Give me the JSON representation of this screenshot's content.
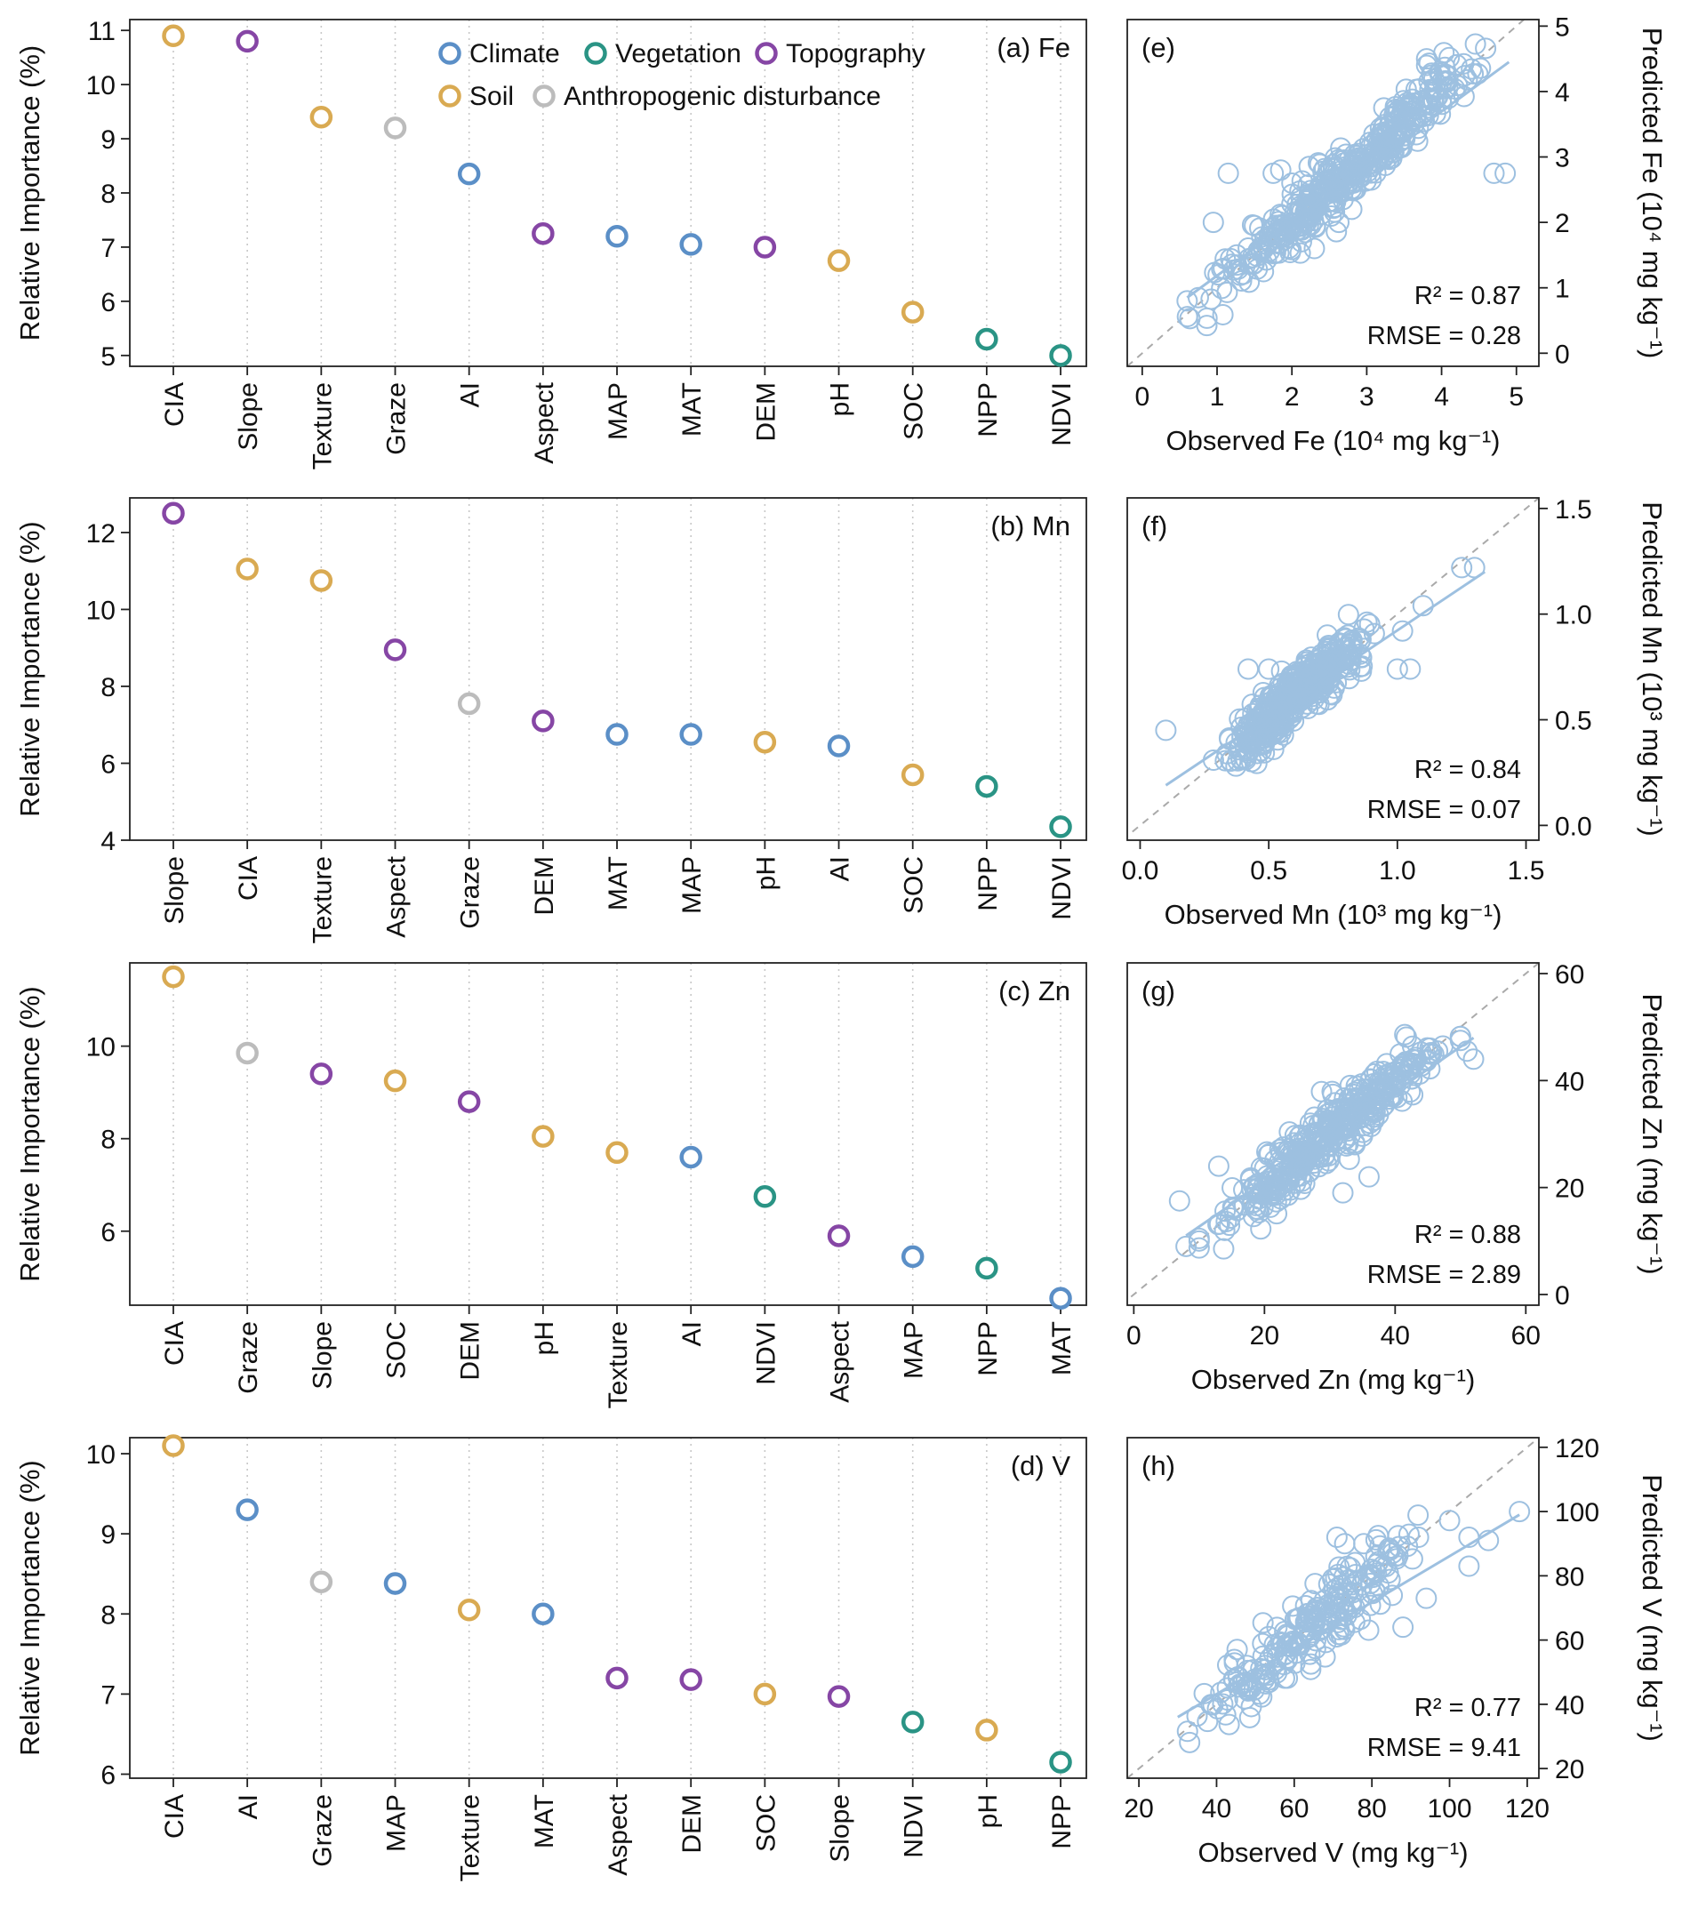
{
  "colors": {
    "Climate": "#5b8fc7",
    "Vegetation": "#2a9485",
    "Topography": "#8646a5",
    "Soil": "#d9aa52",
    "Anthropogenic disturbance": "#bcbcbc",
    "scatter": "#9dc0e0",
    "diagonal": "#aaaaaa"
  },
  "legend": {
    "row1": [
      "Climate",
      "Vegetation",
      "Topography"
    ],
    "row2": [
      "Soil",
      "Anthropogenic disturbance"
    ]
  },
  "chart_data": [
    {
      "type": "scatter",
      "panel": "(a) Fe",
      "ylabel": "Relative Importance (%)",
      "ylim": [
        4.8,
        11.2
      ],
      "yticks": [
        5,
        6,
        7,
        8,
        9,
        10,
        11
      ],
      "categories": [
        "CIA",
        "Slope",
        "Texture",
        "Graze",
        "AI",
        "Aspect",
        "MAP",
        "MAT",
        "DEM",
        "pH",
        "SOC",
        "NPP",
        "NDVI"
      ],
      "groups": [
        "Soil",
        "Topography",
        "Soil",
        "Anthropogenic disturbance",
        "Climate",
        "Topography",
        "Climate",
        "Climate",
        "Topography",
        "Soil",
        "Soil",
        "Vegetation",
        "Vegetation"
      ],
      "values": [
        10.9,
        10.8,
        9.4,
        9.2,
        8.35,
        7.25,
        7.2,
        7.05,
        7.0,
        6.75,
        5.8,
        5.3,
        5.0
      ]
    },
    {
      "type": "scatter",
      "panel": "(b) Mn",
      "ylabel": "Relative Importance (%)",
      "ylim": [
        4.0,
        12.9
      ],
      "yticks": [
        4,
        6,
        8,
        10,
        12
      ],
      "categories": [
        "Slope",
        "CIA",
        "Texture",
        "Aspect",
        "Graze",
        "DEM",
        "MAT",
        "MAP",
        "pH",
        "AI",
        "SOC",
        "NPP",
        "NDVI"
      ],
      "groups": [
        "Topography",
        "Soil",
        "Soil",
        "Topography",
        "Anthropogenic disturbance",
        "Topography",
        "Climate",
        "Climate",
        "Soil",
        "Climate",
        "Soil",
        "Vegetation",
        "Vegetation"
      ],
      "values": [
        12.5,
        11.05,
        10.75,
        8.95,
        7.55,
        7.1,
        6.75,
        6.75,
        6.55,
        6.45,
        5.7,
        5.4,
        4.35
      ]
    },
    {
      "type": "scatter",
      "panel": "(c) Zn",
      "ylabel": "Relative Importance (%)",
      "ylim": [
        4.4,
        11.8
      ],
      "yticks": [
        6,
        8,
        10
      ],
      "categories": [
        "CIA",
        "Graze",
        "Slope",
        "SOC",
        "DEM",
        "pH",
        "Texture",
        "AI",
        "NDVI",
        "Aspect",
        "MAP",
        "NPP",
        "MAT"
      ],
      "groups": [
        "Soil",
        "Anthropogenic disturbance",
        "Topography",
        "Soil",
        "Topography",
        "Soil",
        "Soil",
        "Climate",
        "Vegetation",
        "Topography",
        "Climate",
        "Vegetation",
        "Climate"
      ],
      "values": [
        11.5,
        9.85,
        9.4,
        9.25,
        8.8,
        8.05,
        7.7,
        7.6,
        6.75,
        5.9,
        5.45,
        5.2,
        4.55
      ]
    },
    {
      "type": "scatter",
      "panel": "(d) V",
      "ylabel": "Relative Importance (%)",
      "ylim": [
        5.95,
        10.2
      ],
      "yticks": [
        6,
        7,
        8,
        9,
        10
      ],
      "categories": [
        "CIA",
        "AI",
        "Graze",
        "MAP",
        "Texture",
        "MAT",
        "Aspect",
        "DEM",
        "SOC",
        "Slope",
        "NDVI",
        "pH",
        "NPP"
      ],
      "groups": [
        "Soil",
        "Climate",
        "Anthropogenic disturbance",
        "Climate",
        "Soil",
        "Climate",
        "Topography",
        "Topography",
        "Soil",
        "Topography",
        "Vegetation",
        "Soil",
        "Vegetation"
      ],
      "values": [
        10.1,
        9.3,
        8.4,
        8.38,
        8.05,
        8.0,
        7.2,
        7.18,
        7.0,
        6.97,
        6.65,
        6.55,
        6.15
      ]
    },
    {
      "type": "scatter",
      "panel": "(e)",
      "xlabel": "Observed Fe (10⁴ mg kg⁻¹)",
      "ylabel": "Predicted Fe (10⁴ mg kg⁻¹)",
      "xlim": [
        -0.2,
        5.3
      ],
      "ylim": [
        -0.2,
        5.1
      ],
      "xticks": [
        0,
        1,
        2,
        3,
        4,
        5
      ],
      "yticks": [
        0,
        1,
        2,
        3,
        4,
        5
      ],
      "r2": "R² = 0.87",
      "rmse": "RMSE = 0.28",
      "fit": [
        [
          0.6,
          0.85
        ],
        [
          4.9,
          4.45
        ]
      ],
      "outliers": [
        [
          1.15,
          2.75
        ],
        [
          1.75,
          2.75
        ],
        [
          1.85,
          2.8
        ],
        [
          0.95,
          2.0
        ],
        [
          2.0,
          2.6
        ],
        [
          4.7,
          2.75
        ],
        [
          4.85,
          2.75
        ],
        [
          3.8,
          4.5
        ],
        [
          3.8,
          4.4
        ],
        [
          0.6,
          0.8
        ],
        [
          0.75,
          0.85
        ],
        [
          1.5,
          1.95
        ],
        [
          2.8,
          2.2
        ],
        [
          2.3,
          1.6
        ]
      ],
      "n_points": 420,
      "x_range": [
        0.6,
        4.9
      ],
      "noise": 0.22
    },
    {
      "type": "scatter",
      "panel": "(f)",
      "xlabel": "Observed Mn (10³ mg kg⁻¹)",
      "ylabel": "Predicted Mn (10³ mg kg⁻¹)",
      "xlim": [
        -0.05,
        1.55
      ],
      "ylim": [
        -0.07,
        1.55
      ],
      "xticks": [
        0.0,
        0.5,
        1.0,
        1.5
      ],
      "yticks": [
        0.0,
        0.5,
        1.0,
        1.5
      ],
      "tick_format": "1dp",
      "r2": "R² = 0.84",
      "rmse": "RMSE = 0.07",
      "fit": [
        [
          0.1,
          0.19
        ],
        [
          1.34,
          1.2
        ]
      ],
      "outliers": [
        [
          0.1,
          0.45
        ],
        [
          0.42,
          0.74
        ],
        [
          0.5,
          0.74
        ],
        [
          0.55,
          0.73
        ],
        [
          1.0,
          0.74
        ],
        [
          1.05,
          0.74
        ],
        [
          1.02,
          0.92
        ],
        [
          1.25,
          1.22
        ],
        [
          1.3,
          1.22
        ],
        [
          1.1,
          1.04
        ],
        [
          0.82,
          0.78
        ],
        [
          0.86,
          0.73
        ]
      ],
      "n_points": 420,
      "x_range": [
        0.25,
        0.95
      ],
      "noise": 0.06
    },
    {
      "type": "scatter",
      "panel": "(g)",
      "xlabel": "Observed Zn (mg kg⁻¹)",
      "ylabel": "Predicted Zn (mg kg⁻¹)",
      "xlim": [
        -1,
        62
      ],
      "ylim": [
        -2,
        62
      ],
      "xticks": [
        0,
        20,
        40,
        60
      ],
      "yticks": [
        0,
        20,
        40,
        60
      ],
      "r2": "R² = 0.88",
      "rmse": "RMSE = 2.89",
      "fit": [
        [
          8,
          11
        ],
        [
          52,
          48
        ]
      ],
      "outliers": [
        [
          7,
          17.5
        ],
        [
          8,
          9
        ],
        [
          10,
          10
        ],
        [
          51,
          45.5
        ],
        [
          52,
          44
        ],
        [
          50,
          47.5
        ],
        [
          32,
          19
        ],
        [
          36,
          22
        ],
        [
          13,
          24
        ]
      ],
      "n_points": 400,
      "x_range": [
        10,
        50
      ],
      "noise": 2.6
    },
    {
      "type": "scatter",
      "panel": "(h)",
      "xlabel": "Observed V (mg kg⁻¹)",
      "ylabel": "Predicted V (mg kg⁻¹)",
      "xlim": [
        17,
        123
      ],
      "ylim": [
        17,
        123
      ],
      "xticks": [
        20,
        40,
        60,
        80,
        100,
        120
      ],
      "yticks": [
        20,
        40,
        60,
        80,
        100,
        120
      ],
      "r2": "R² = 0.77",
      "rmse": "RMSE = 9.41",
      "fit": [
        [
          30,
          36
        ],
        [
          118,
          99
        ]
      ],
      "outliers": [
        [
          71,
          92
        ],
        [
          86,
          86
        ],
        [
          92,
          92
        ],
        [
          118,
          100
        ],
        [
          110,
          91
        ],
        [
          105,
          92
        ],
        [
          73,
          90
        ],
        [
          88,
          64
        ],
        [
          94,
          73
        ],
        [
          105,
          83
        ]
      ],
      "n_points": 230,
      "x_range": [
        30,
        100
      ],
      "noise": 5.5
    }
  ]
}
